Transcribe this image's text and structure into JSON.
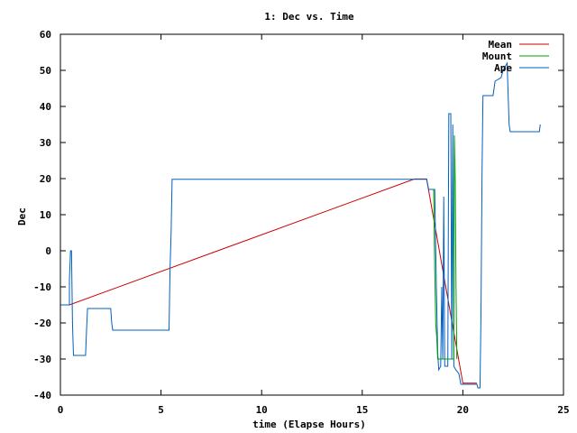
{
  "chart_data": {
    "type": "line",
    "title": "1: Dec vs. Time",
    "xlabel": "time (Elapse Hours)",
    "ylabel": "Dec",
    "xlim": [
      0,
      25
    ],
    "ylim": [
      -40,
      60
    ],
    "xticks": [
      0,
      5,
      10,
      15,
      20,
      25
    ],
    "yticks": [
      -40,
      -30,
      -20,
      -10,
      0,
      10,
      20,
      30,
      40,
      50,
      60
    ],
    "grid": false,
    "legend_position": "top-right",
    "series": [
      {
        "name": "Mean",
        "color": "#cc0000",
        "points": [
          [
            0,
            -15
          ],
          [
            0.45,
            -15
          ],
          [
            17.6,
            19.9
          ],
          [
            18.2,
            19.9
          ],
          [
            20.0,
            -36.7
          ],
          [
            20.7,
            -36.7
          ]
        ]
      },
      {
        "name": "Mount",
        "color": "#00a000",
        "points": [
          [
            18.55,
            17
          ],
          [
            18.6,
            -5
          ],
          [
            18.65,
            -20
          ],
          [
            18.7,
            -24
          ],
          [
            18.75,
            -30
          ],
          [
            19.55,
            -30
          ],
          [
            19.58,
            32
          ],
          [
            19.62,
            20
          ],
          [
            19.66,
            -10
          ],
          [
            19.7,
            -30
          ]
        ]
      },
      {
        "name": "Ape",
        "color": "#0060c0",
        "points": [
          [
            0,
            -15
          ],
          [
            0.45,
            -15
          ],
          [
            0.45,
            -8
          ],
          [
            0.5,
            0
          ],
          [
            0.55,
            0
          ],
          [
            0.6,
            -20
          ],
          [
            0.65,
            -29
          ],
          [
            1.25,
            -29
          ],
          [
            1.3,
            -22
          ],
          [
            1.35,
            -16
          ],
          [
            2.5,
            -16
          ],
          [
            2.55,
            -20
          ],
          [
            2.6,
            -22
          ],
          [
            5.4,
            -22
          ],
          [
            5.45,
            -5
          ],
          [
            5.5,
            5
          ],
          [
            5.55,
            19.8
          ],
          [
            17.6,
            19.8
          ],
          [
            18.2,
            19.8
          ],
          [
            18.3,
            17
          ],
          [
            18.6,
            17
          ],
          [
            18.65,
            0
          ],
          [
            18.7,
            -15
          ],
          [
            18.75,
            -28
          ],
          [
            18.8,
            -33
          ],
          [
            18.9,
            -32
          ],
          [
            18.95,
            -10
          ],
          [
            19.0,
            -30
          ],
          [
            19.05,
            15
          ],
          [
            19.1,
            -32
          ],
          [
            19.25,
            -32
          ],
          [
            19.3,
            38
          ],
          [
            19.4,
            38
          ],
          [
            19.45,
            -30
          ],
          [
            19.5,
            35
          ],
          [
            19.55,
            -32
          ],
          [
            19.65,
            -33
          ],
          [
            19.8,
            -34
          ],
          [
            19.9,
            -37
          ],
          [
            20.0,
            -37
          ],
          [
            20.7,
            -37
          ],
          [
            20.75,
            -38
          ],
          [
            20.85,
            -38
          ],
          [
            20.9,
            -18
          ],
          [
            20.95,
            20
          ],
          [
            21.0,
            43
          ],
          [
            21.5,
            43
          ],
          [
            21.6,
            47
          ],
          [
            21.9,
            48
          ],
          [
            22.0,
            50
          ],
          [
            22.2,
            52
          ],
          [
            22.3,
            35
          ],
          [
            22.35,
            33
          ],
          [
            23.7,
            33
          ],
          [
            23.8,
            33
          ],
          [
            23.85,
            35
          ]
        ]
      }
    ]
  }
}
